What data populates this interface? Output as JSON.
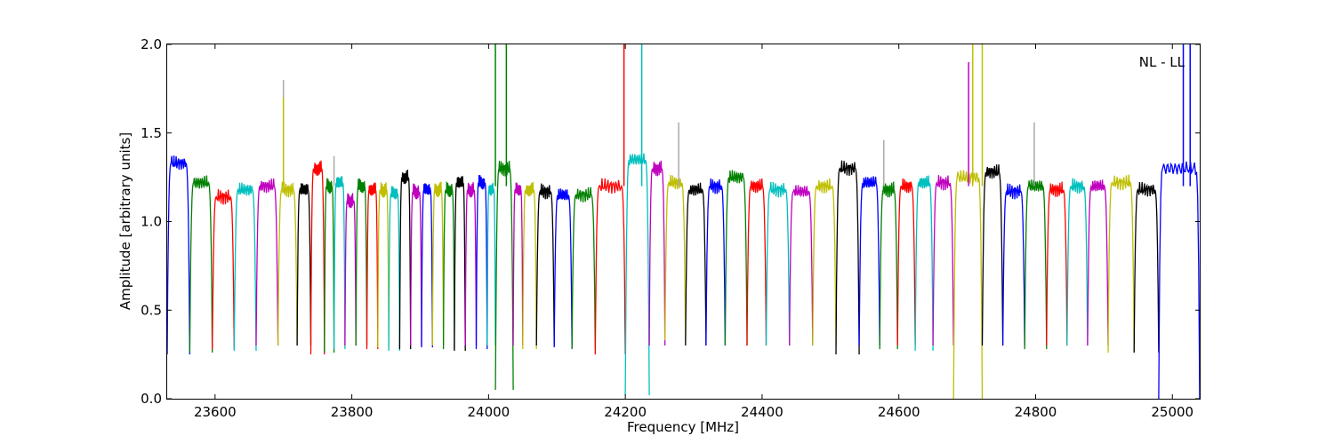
{
  "chart_data": {
    "type": "line",
    "title": "",
    "xlabel": "Frequency [MHz]",
    "ylabel": "Amplitude [arbitrary units]",
    "annotation": "NL - LL",
    "xlim": [
      23530,
      25040
    ],
    "ylim": [
      0.0,
      2.0
    ],
    "xticks": [
      23600,
      23800,
      24000,
      24200,
      24400,
      24600,
      24800,
      25000
    ],
    "yticks": [
      0.0,
      0.5,
      1.0,
      1.5,
      2.0
    ],
    "xtick_labels": [
      "23600",
      "23800",
      "24000",
      "24200",
      "24400",
      "24600",
      "24800",
      "25000"
    ],
    "ytick_labels": [
      "0.0",
      "0.5",
      "1.0",
      "1.5",
      "2.0"
    ],
    "grid": false,
    "legend": false,
    "colors": {
      "blue": "#0000ff",
      "green": "#008000",
      "red": "#ff0000",
      "cyan": "#00bfbf",
      "magenta": "#bf00bf",
      "olive": "#bfbf00",
      "black": "#000000",
      "gray": "#aaaaaa"
    },
    "series": [
      {
        "color": "blue",
        "x_start": 23530,
        "x_end": 23563,
        "plateau": 1.33,
        "min": 0.25
      },
      {
        "color": "green",
        "x_start": 23563,
        "x_end": 23596,
        "plateau": 1.22,
        "min": 0.26
      },
      {
        "color": "red",
        "x_start": 23596,
        "x_end": 23628,
        "plateau": 1.14,
        "min": 0.28
      },
      {
        "color": "cyan",
        "x_start": 23628,
        "x_end": 23660,
        "plateau": 1.18,
        "min": 0.27
      },
      {
        "color": "magenta",
        "x_start": 23660,
        "x_end": 23692,
        "plateau": 1.2,
        "min": 0.3
      },
      {
        "color": "olive",
        "x_start": 23692,
        "x_end": 23720,
        "plateau": 1.18,
        "min": 0.3
      },
      {
        "color": "black",
        "x_start": 23720,
        "x_end": 23740,
        "plateau": 1.18,
        "min": 0.3
      },
      {
        "color": "red",
        "x_start": 23740,
        "x_end": 23760,
        "plateau": 1.3,
        "min": 0.25
      },
      {
        "color": "green",
        "x_start": 23760,
        "x_end": 23774,
        "plateau": 1.2,
        "min": 0.26
      },
      {
        "color": "cyan",
        "x_start": 23774,
        "x_end": 23790,
        "plateau": 1.22,
        "min": 0.28
      },
      {
        "color": "magenta",
        "x_start": 23790,
        "x_end": 23806,
        "plateau": 1.12,
        "min": 0.3
      },
      {
        "color": "green",
        "x_start": 23806,
        "x_end": 23822,
        "plateau": 1.2,
        "min": 0.3
      },
      {
        "color": "red",
        "x_start": 23822,
        "x_end": 23838,
        "plateau": 1.18,
        "min": 0.28
      },
      {
        "color": "olive",
        "x_start": 23838,
        "x_end": 23854,
        "plateau": 1.18,
        "min": 0.29
      },
      {
        "color": "cyan",
        "x_start": 23854,
        "x_end": 23870,
        "plateau": 1.16,
        "min": 0.27
      },
      {
        "color": "black",
        "x_start": 23870,
        "x_end": 23886,
        "plateau": 1.25,
        "min": 0.28
      },
      {
        "color": "magenta",
        "x_start": 23886,
        "x_end": 23902,
        "plateau": 1.17,
        "min": 0.3
      },
      {
        "color": "blue",
        "x_start": 23902,
        "x_end": 23918,
        "plateau": 1.18,
        "min": 0.29
      },
      {
        "color": "olive",
        "x_start": 23918,
        "x_end": 23934,
        "plateau": 1.18,
        "min": 0.3
      },
      {
        "color": "green",
        "x_start": 23934,
        "x_end": 23950,
        "plateau": 1.18,
        "min": 0.28
      },
      {
        "color": "black",
        "x_start": 23950,
        "x_end": 23966,
        "plateau": 1.22,
        "min": 0.27
      },
      {
        "color": "magenta",
        "x_start": 23966,
        "x_end": 23982,
        "plateau": 1.18,
        "min": 0.3
      },
      {
        "color": "blue",
        "x_start": 23982,
        "x_end": 23998,
        "plateau": 1.22,
        "min": 0.28
      },
      {
        "color": "cyan",
        "x_start": 23998,
        "x_end": 24010,
        "plateau": 1.18,
        "min": 0.3
      },
      {
        "color": "green",
        "x_start": 24010,
        "x_end": 24036,
        "plateau": 1.3,
        "min": 0.05
      },
      {
        "color": "magenta",
        "x_start": 24036,
        "x_end": 24050,
        "plateau": 1.18,
        "min": 0.3
      },
      {
        "color": "olive",
        "x_start": 24050,
        "x_end": 24070,
        "plateau": 1.18,
        "min": 0.28
      },
      {
        "color": "black",
        "x_start": 24070,
        "x_end": 24096,
        "plateau": 1.17,
        "min": 0.3
      },
      {
        "color": "blue",
        "x_start": 24096,
        "x_end": 24122,
        "plateau": 1.15,
        "min": 0.29
      },
      {
        "color": "green",
        "x_start": 24122,
        "x_end": 24156,
        "plateau": 1.15,
        "min": 0.28
      },
      {
        "color": "red",
        "x_start": 24156,
        "x_end": 24200,
        "plateau": 1.2,
        "min": 0.25
      },
      {
        "color": "cyan",
        "x_start": 24200,
        "x_end": 24235,
        "plateau": 1.35,
        "min": 0.02
      },
      {
        "color": "magenta",
        "x_start": 24235,
        "x_end": 24258,
        "plateau": 1.3,
        "min": 0.3
      },
      {
        "color": "olive",
        "x_start": 24258,
        "x_end": 24288,
        "plateau": 1.22,
        "min": 0.33
      },
      {
        "color": "black",
        "x_start": 24288,
        "x_end": 24318,
        "plateau": 1.18,
        "min": 0.3
      },
      {
        "color": "blue",
        "x_start": 24318,
        "x_end": 24346,
        "plateau": 1.2,
        "min": 0.3
      },
      {
        "color": "green",
        "x_start": 24346,
        "x_end": 24378,
        "plateau": 1.25,
        "min": 0.3
      },
      {
        "color": "red",
        "x_start": 24378,
        "x_end": 24406,
        "plateau": 1.2,
        "min": 0.3
      },
      {
        "color": "cyan",
        "x_start": 24406,
        "x_end": 24440,
        "plateau": 1.18,
        "min": 0.3
      },
      {
        "color": "magenta",
        "x_start": 24440,
        "x_end": 24474,
        "plateau": 1.17,
        "min": 0.3
      },
      {
        "color": "olive",
        "x_start": 24474,
        "x_end": 24508,
        "plateau": 1.2,
        "min": 0.3
      },
      {
        "color": "black",
        "x_start": 24508,
        "x_end": 24542,
        "plateau": 1.3,
        "min": 0.25
      },
      {
        "color": "blue",
        "x_start": 24542,
        "x_end": 24572,
        "plateau": 1.22,
        "min": 0.3
      },
      {
        "color": "green",
        "x_start": 24572,
        "x_end": 24598,
        "plateau": 1.18,
        "min": 0.28
      },
      {
        "color": "red",
        "x_start": 24598,
        "x_end": 24624,
        "plateau": 1.2,
        "min": 0.3
      },
      {
        "color": "cyan",
        "x_start": 24624,
        "x_end": 24650,
        "plateau": 1.22,
        "min": 0.27
      },
      {
        "color": "magenta",
        "x_start": 24650,
        "x_end": 24680,
        "plateau": 1.22,
        "min": 0.3
      },
      {
        "color": "olive",
        "x_start": 24680,
        "x_end": 24722,
        "plateau": 1.25,
        "min": 0.0
      },
      {
        "color": "black",
        "x_start": 24722,
        "x_end": 24752,
        "plateau": 1.28,
        "min": 0.3
      },
      {
        "color": "blue",
        "x_start": 24752,
        "x_end": 24784,
        "plateau": 1.17,
        "min": 0.3
      },
      {
        "color": "green",
        "x_start": 24784,
        "x_end": 24816,
        "plateau": 1.2,
        "min": 0.28
      },
      {
        "color": "red",
        "x_start": 24816,
        "x_end": 24846,
        "plateau": 1.18,
        "min": 0.3
      },
      {
        "color": "cyan",
        "x_start": 24846,
        "x_end": 24876,
        "plateau": 1.2,
        "min": 0.3
      },
      {
        "color": "magenta",
        "x_start": 24876,
        "x_end": 24906,
        "plateau": 1.2,
        "min": 0.3
      },
      {
        "color": "olive",
        "x_start": 24906,
        "x_end": 24944,
        "plateau": 1.22,
        "min": 0.26
      },
      {
        "color": "black",
        "x_start": 24944,
        "x_end": 24980,
        "plateau": 1.18,
        "min": 0.26
      },
      {
        "color": "blue",
        "x_start": 24980,
        "x_end": 25040,
        "plateau": 1.3,
        "min": 0.0
      }
    ],
    "spikes": [
      {
        "color": "gray",
        "x": 23700,
        "y": 1.8
      },
      {
        "color": "olive",
        "x": 23700,
        "y": 1.7
      },
      {
        "color": "gray",
        "x": 23774,
        "y": 1.37
      },
      {
        "color": "green",
        "x": 24010,
        "y": 2.0
      },
      {
        "color": "green",
        "x": 24026,
        "y": 2.0
      },
      {
        "color": "red",
        "x": 24198,
        "y": 2.0
      },
      {
        "color": "cyan",
        "x": 24224,
        "y": 2.0
      },
      {
        "color": "gray",
        "x": 24278,
        "y": 1.56
      },
      {
        "color": "gray",
        "x": 24578,
        "y": 1.46
      },
      {
        "color": "magenta",
        "x": 24702,
        "y": 1.9
      },
      {
        "color": "olive",
        "x": 24708,
        "y": 2.0
      },
      {
        "color": "olive",
        "x": 24722,
        "y": 2.0
      },
      {
        "color": "gray",
        "x": 24798,
        "y": 1.56
      },
      {
        "color": "blue",
        "x": 25016,
        "y": 2.0
      },
      {
        "color": "blue",
        "x": 25026,
        "y": 2.0
      }
    ]
  }
}
